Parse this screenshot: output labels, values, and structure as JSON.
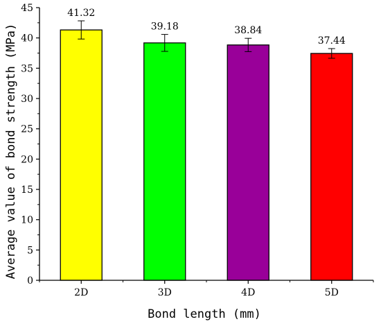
{
  "chart_data": {
    "type": "bar",
    "categories": [
      "2D",
      "3D",
      "4D",
      "5D"
    ],
    "values": [
      41.32,
      39.18,
      38.84,
      37.44
    ],
    "errors": [
      1.5,
      1.4,
      1.1,
      0.8
    ],
    "data_labels": [
      "41.32",
      "39.18",
      "38.84",
      "37.44"
    ],
    "colors": [
      "#ffff00",
      "#00ff00",
      "#990099",
      "#ff0000"
    ],
    "xlabel": "Bond length (mm)",
    "ylabel": "Average value of bond strength (MPa)",
    "ylim": [
      0,
      45
    ],
    "yticks": [
      0,
      5,
      10,
      15,
      20,
      25,
      30,
      35,
      40,
      45
    ],
    "grid": false,
    "legend": "none"
  }
}
